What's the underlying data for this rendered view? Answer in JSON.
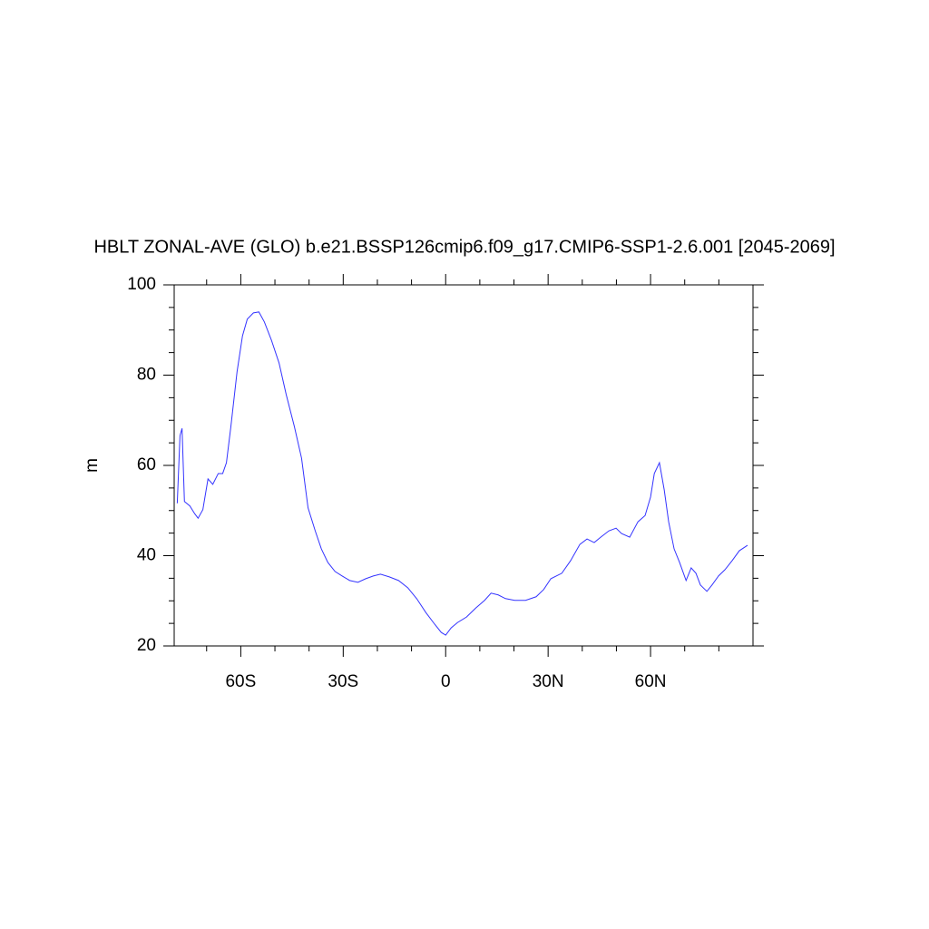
{
  "chart_data": {
    "type": "line",
    "title": "HBLT ZONAL-AVE (GLO) b.e21.BSSP126cmip6.f09_g17.CMIP6-SSP1-2.6.001 [2045-2069]",
    "ylabel": "m",
    "xlim": [
      -79.5,
      90
    ],
    "ylim": [
      20,
      100
    ],
    "xticks": [
      {
        "value": -60,
        "label": "60S"
      },
      {
        "value": -30,
        "label": "30S"
      },
      0,
      {
        "value": 30,
        "label": "30N"
      },
      {
        "value": 60,
        "label": "60N"
      }
    ],
    "xminorticks": [
      -70,
      -50,
      -40,
      -20,
      -10,
      10,
      20,
      40,
      50,
      70,
      80
    ],
    "yticks": [
      20,
      40,
      60,
      80,
      100
    ],
    "yminorticks": [
      25,
      30,
      35,
      45,
      50,
      55,
      65,
      70,
      75,
      85,
      90,
      95
    ],
    "x": [
      -78.6,
      -77.8,
      -77.2,
      -76.5,
      -74.9,
      -73.5,
      -72.5,
      -71.1,
      -69.6,
      -68.2,
      -66.6,
      -65.3,
      -64.2,
      -62.9,
      -61.1,
      -59.5,
      -58.1,
      -56.3,
      -54.7,
      -53.1,
      -51.0,
      -48.8,
      -46.7,
      -44.3,
      -42.2,
      -40.3,
      -38.2,
      -36.4,
      -34.5,
      -32.4,
      -30.3,
      -28.1,
      -25.7,
      -23.4,
      -21.2,
      -19.1,
      -16.5,
      -13.8,
      -11.1,
      -8.5,
      -5.8,
      -3.2,
      -1.3,
      0,
      1.6,
      3.5,
      6.1,
      8.8,
      11.4,
      13.3,
      15.4,
      17.5,
      20.2,
      23.4,
      26.5,
      28.7,
      30.8,
      34.0,
      36.6,
      39.3,
      41.4,
      43.5,
      45.4,
      47.8,
      49.9,
      51.5,
      53.9,
      56.3,
      58.4,
      60.0,
      61.1,
      62.6,
      64.0,
      65.3,
      66.9,
      68.5,
      70.4,
      71.9,
      73.3,
      74.6,
      76.5,
      78.0,
      79.9,
      81.8,
      83.9,
      86.0,
      88.4
    ],
    "series": [
      {
        "color": "#3333ff",
        "values": [
          51.6,
          66.6,
          68.2,
          52,
          51,
          49.3,
          48.3,
          50.2,
          57,
          55.8,
          58.2,
          58.2,
          60.6,
          68.6,
          80.7,
          88.7,
          92.4,
          93.8,
          94.0,
          91.8,
          87.7,
          82.7,
          75.7,
          68.6,
          61.6,
          50.6,
          45.5,
          41.5,
          38.5,
          36.5,
          35.5,
          34.5,
          34.1,
          34.9,
          35.5,
          35.9,
          35.3,
          34.5,
          32.9,
          30.5,
          27.4,
          24.8,
          23.0,
          22.4,
          24.0,
          25.2,
          26.4,
          28.4,
          30.1,
          31.7,
          31.3,
          30.5,
          30.1,
          30.1,
          30.9,
          32.5,
          34.9,
          36.1,
          38.9,
          42.5,
          43.7,
          42.9,
          44.1,
          45.5,
          46.1,
          44.9,
          44.1,
          47.5,
          48.9,
          53.0,
          58.2,
          60.6,
          54.6,
          47.5,
          41.5,
          38.5,
          34.5,
          37.3,
          36.1,
          33.5,
          32.1,
          33.5,
          35.5,
          36.9,
          38.9,
          41.1,
          42.3
        ]
      }
    ]
  }
}
